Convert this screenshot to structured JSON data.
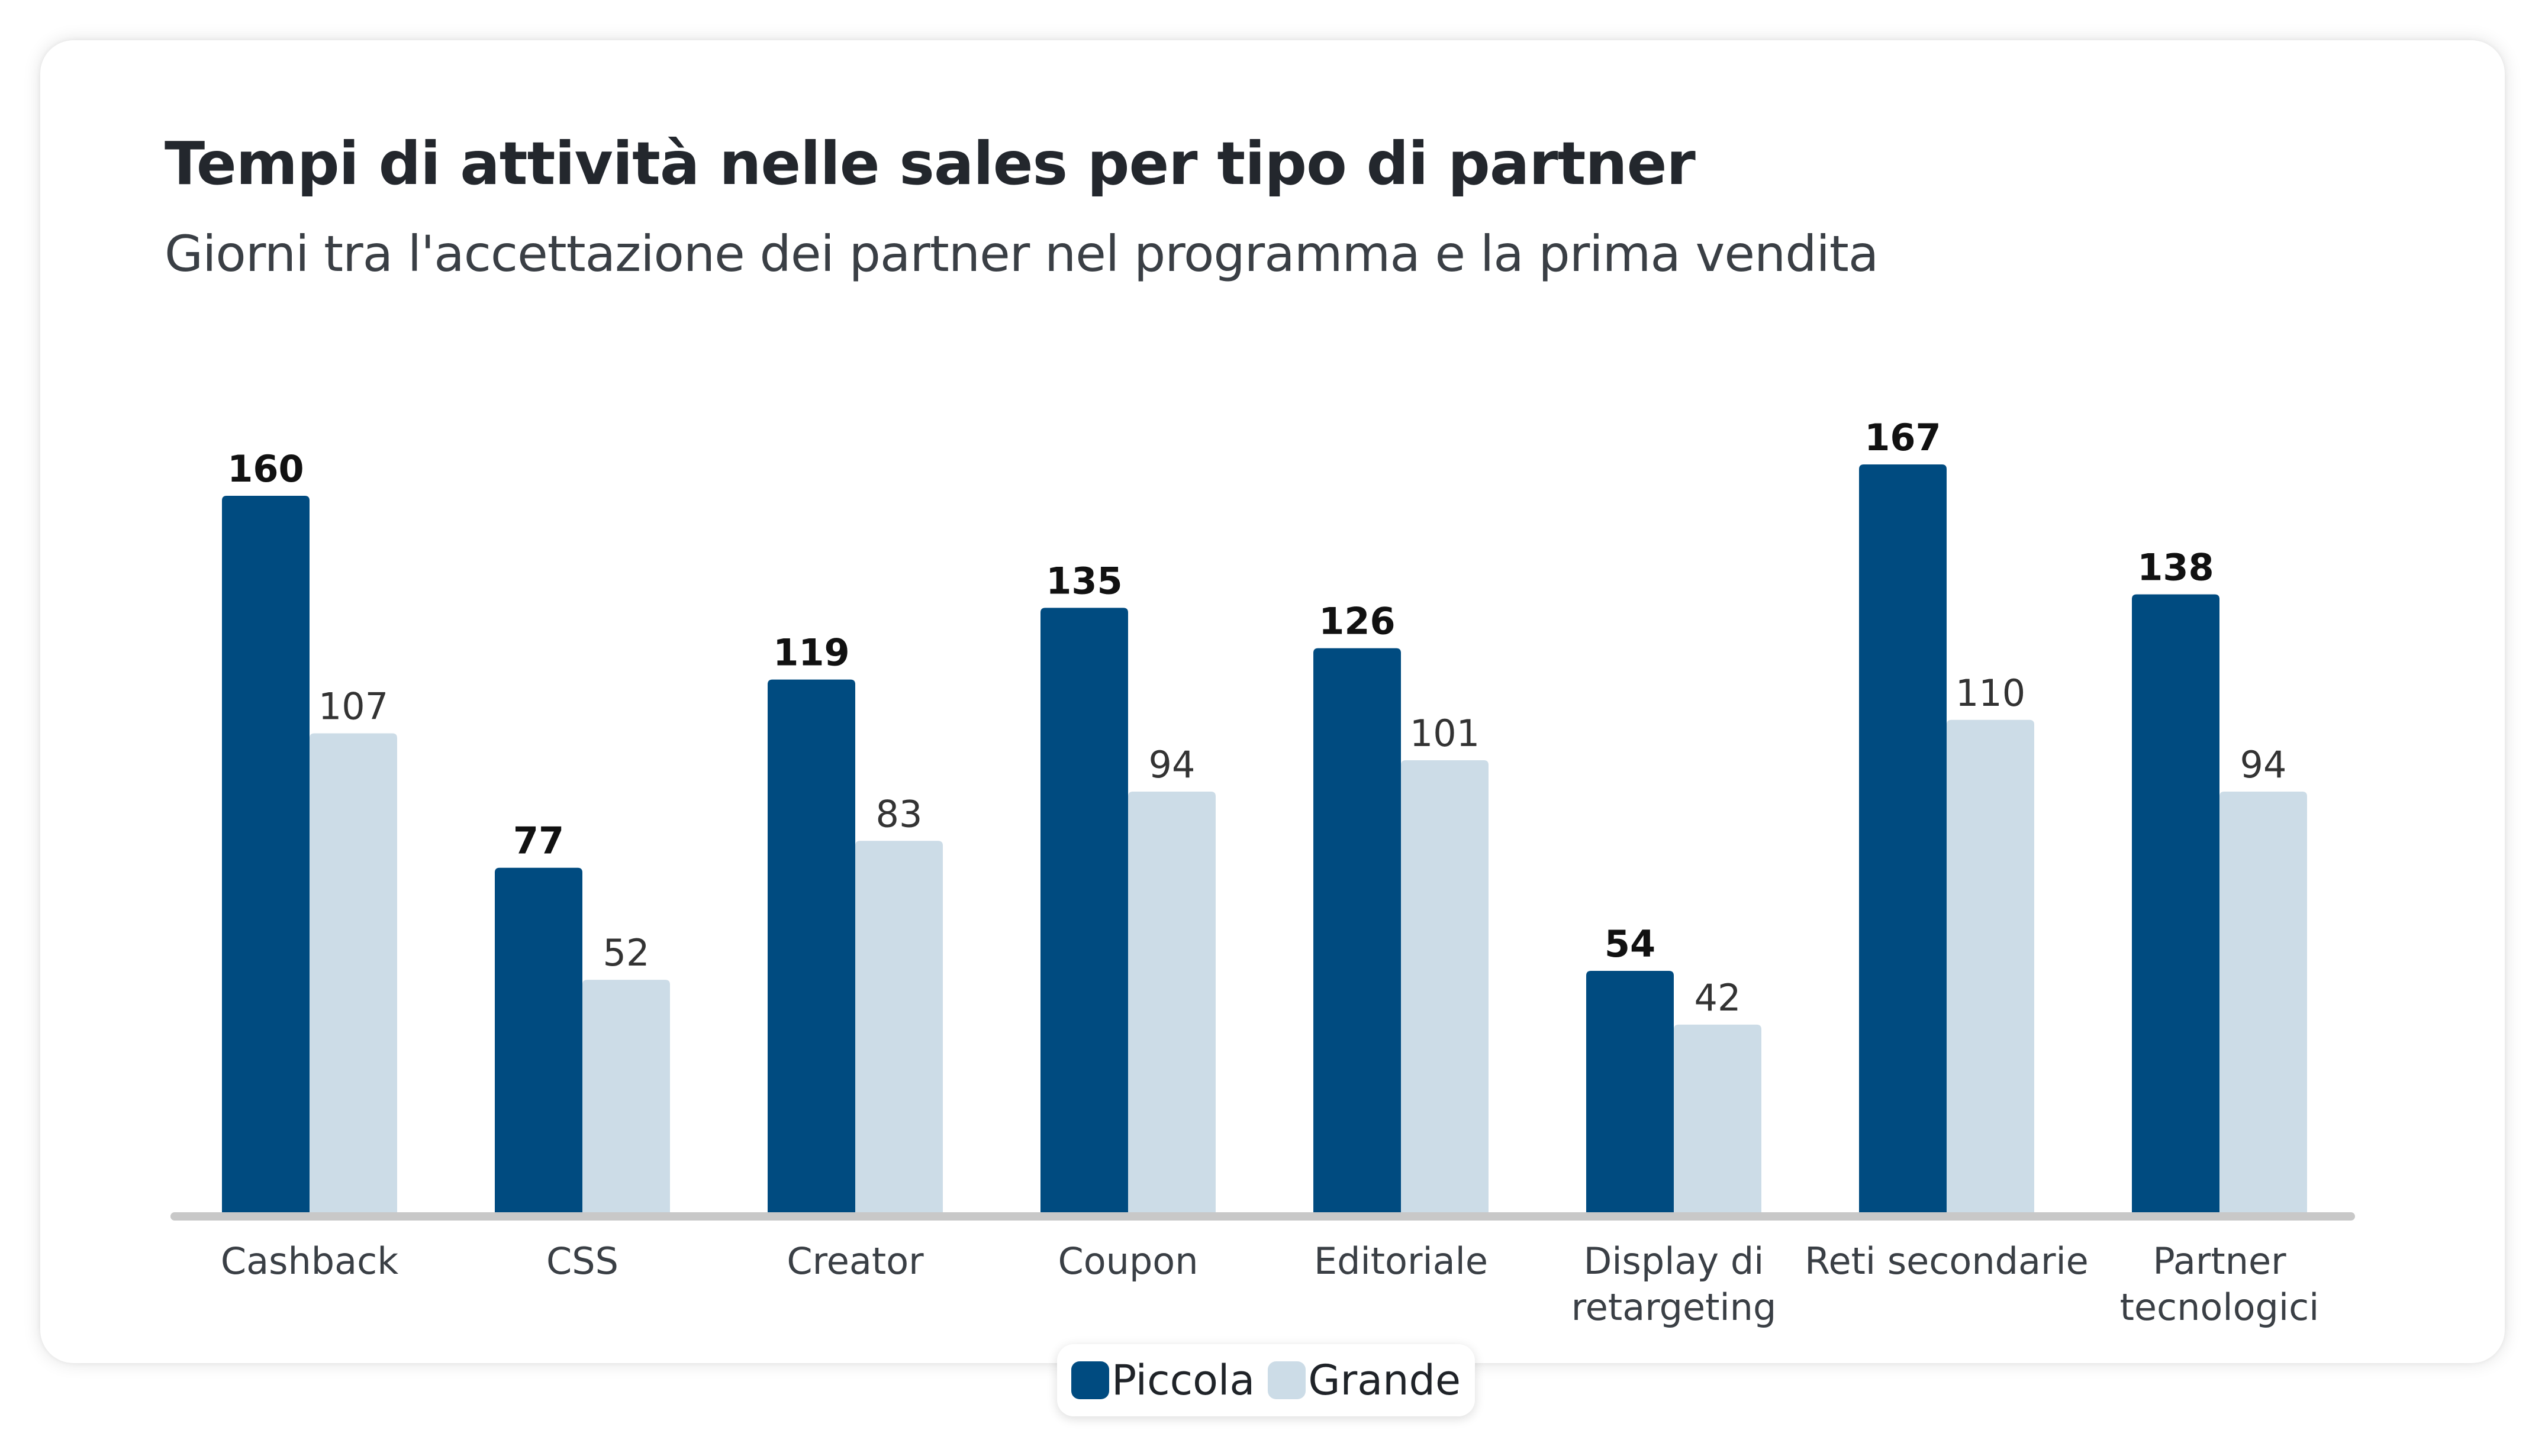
{
  "header": {
    "title": "Tempi di attività nelle sales per tipo di partner",
    "subtitle": "Giorni tra l'accettazione dei partner nel programma e la prima vendita"
  },
  "colors": {
    "piccola": "#004b80",
    "grande": "#ccdce7",
    "baseline": "#c8c8c8",
    "label_piccola": "#111111",
    "label_grande": "#333333",
    "tick": "#3a3f45"
  },
  "legend": {
    "piccola": "Piccola",
    "grande": "Grande"
  },
  "chart_data": {
    "type": "bar",
    "title": "Tempi di attività nelle sales per tipo di partner",
    "subtitle": "Giorni tra l'accettazione dei partner nel programma e la prima vendita",
    "categories": [
      [
        "Cashback"
      ],
      [
        "CSS"
      ],
      [
        "Creator"
      ],
      [
        "Coupon"
      ],
      [
        "Editoriale"
      ],
      [
        "Display di",
        "retargeting"
      ],
      [
        "Reti secondarie"
      ],
      [
        "Partner",
        "tecnologici"
      ]
    ],
    "series": [
      {
        "name": "Piccola",
        "values": [
          160,
          77,
          119,
          135,
          126,
          54,
          167,
          138
        ]
      },
      {
        "name": "Grande",
        "values": [
          107,
          52,
          83,
          94,
          101,
          42,
          110,
          94
        ]
      }
    ],
    "ylim": [
      0,
      167
    ],
    "grid": false,
    "data_labels": true,
    "legend_position": "bottom-center"
  }
}
